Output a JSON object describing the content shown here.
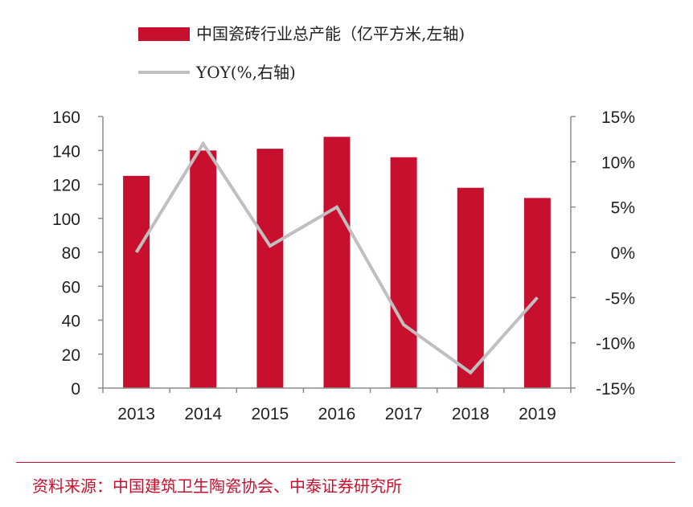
{
  "chart_data": {
    "type": "bar",
    "title": "",
    "xlabel": "",
    "ylabel": "",
    "categories": [
      "2013",
      "2014",
      "2015",
      "2016",
      "2017",
      "2018",
      "2019"
    ],
    "series": [
      {
        "name": "中国瓷砖行业总产能（亿平方米,左轴)",
        "type": "bar",
        "axis": "left",
        "values": [
          125,
          140,
          141,
          148,
          136,
          118,
          112
        ]
      },
      {
        "name": "YOY(%,右轴)",
        "type": "line",
        "axis": "right",
        "values": [
          0,
          12,
          0.7,
          5,
          -8,
          -13.3,
          -5
        ]
      }
    ],
    "ylim_left": [
      0,
      160
    ],
    "yticks_left": [
      "0",
      "20",
      "40",
      "60",
      "80",
      "100",
      "120",
      "140",
      "160"
    ],
    "ylim_right": [
      -15,
      15
    ],
    "yticks_right": [
      "-15%",
      "-10%",
      "-5%",
      "0%",
      "5%",
      "10%",
      "15%"
    ],
    "grid": false,
    "legend_position": "top",
    "colors": {
      "bar": "#c8102e",
      "line": "#bfbfbf",
      "axis": "#8c8c8c",
      "source": "#c8102e"
    }
  },
  "source_note": "资料来源：中国建筑卫生陶瓷协会、中泰证券研究所"
}
